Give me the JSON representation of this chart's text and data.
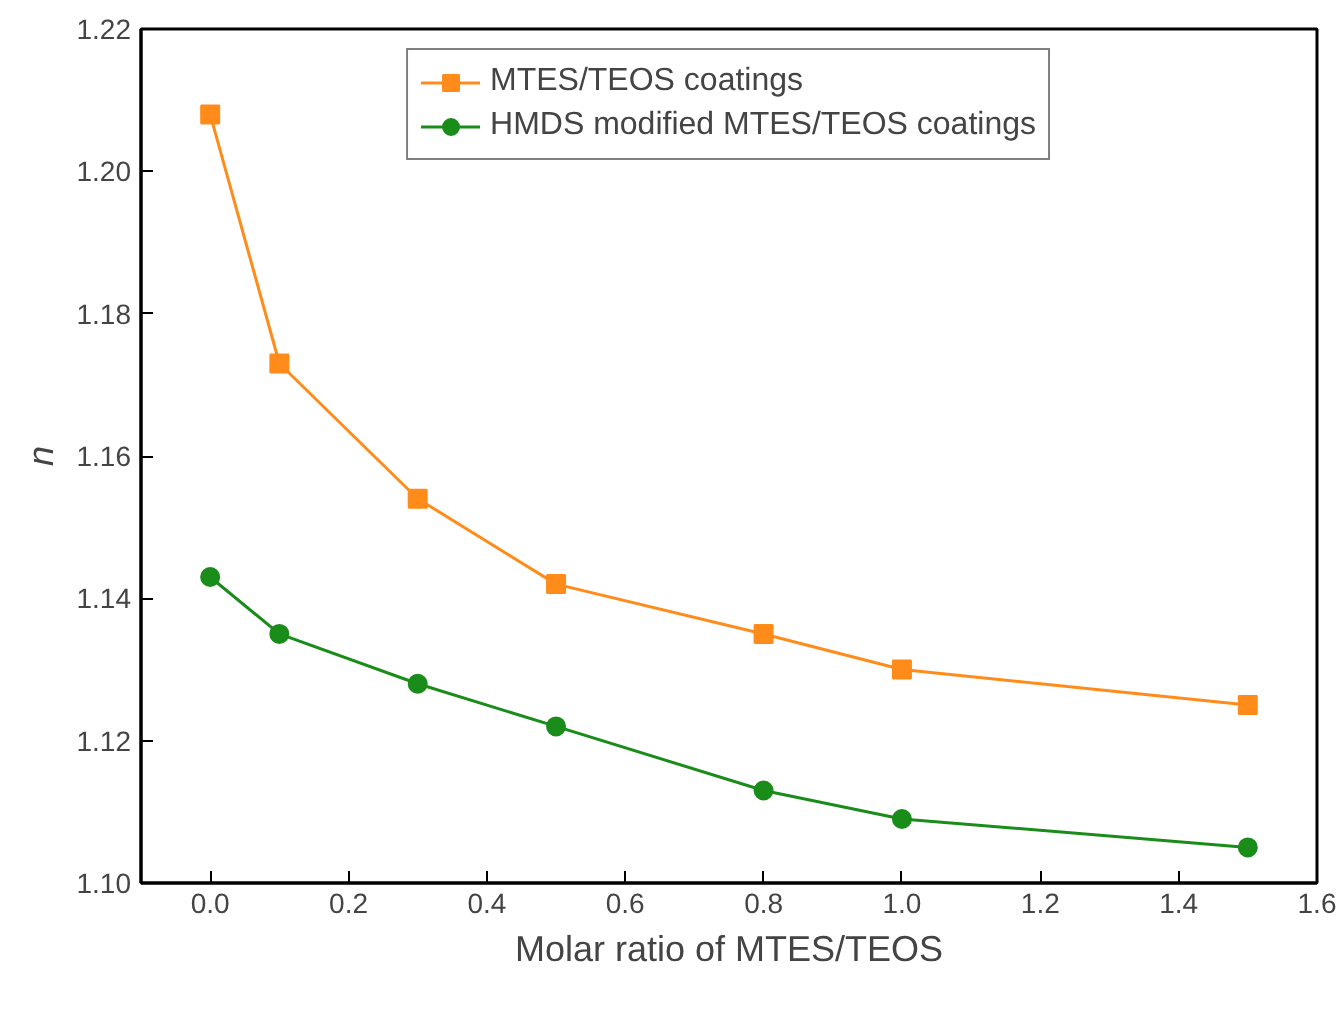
{
  "chart_data": {
    "type": "line",
    "xlabel": "Molar ratio of MTES/TEOS",
    "ylabel": "n",
    "x": [
      0.0,
      0.1,
      0.3,
      0.5,
      0.8,
      1.0,
      1.5
    ],
    "series": [
      {
        "name": "MTES/TEOS coatings",
        "color": "#ff8c1a",
        "marker": "square",
        "values": [
          1.208,
          1.173,
          1.154,
          1.142,
          1.135,
          1.13,
          1.125
        ]
      },
      {
        "name": "HMDS modified MTES/TEOS coatings",
        "color": "#1a8c1a",
        "marker": "circle",
        "values": [
          1.143,
          1.135,
          1.128,
          1.122,
          1.113,
          1.109,
          1.105
        ]
      }
    ],
    "xlim": [
      -0.1,
      1.6
    ],
    "ylim": [
      1.1,
      1.22
    ],
    "xticks": [
      {
        "value": 0,
        "label": "0.0"
      },
      0.2,
      0.4,
      0.6,
      0.8,
      {
        "value": 1,
        "label": "1.0"
      },
      1.2,
      1.4,
      1.6
    ],
    "yticks": [
      {
        "value": 1.1,
        "label": "1.10"
      },
      1.12,
      1.14,
      1.16,
      1.18,
      {
        "value": 1.2,
        "label": "1.20"
      },
      1.22
    ],
    "grid": false,
    "legend": "top",
    "line_style": "solid"
  }
}
